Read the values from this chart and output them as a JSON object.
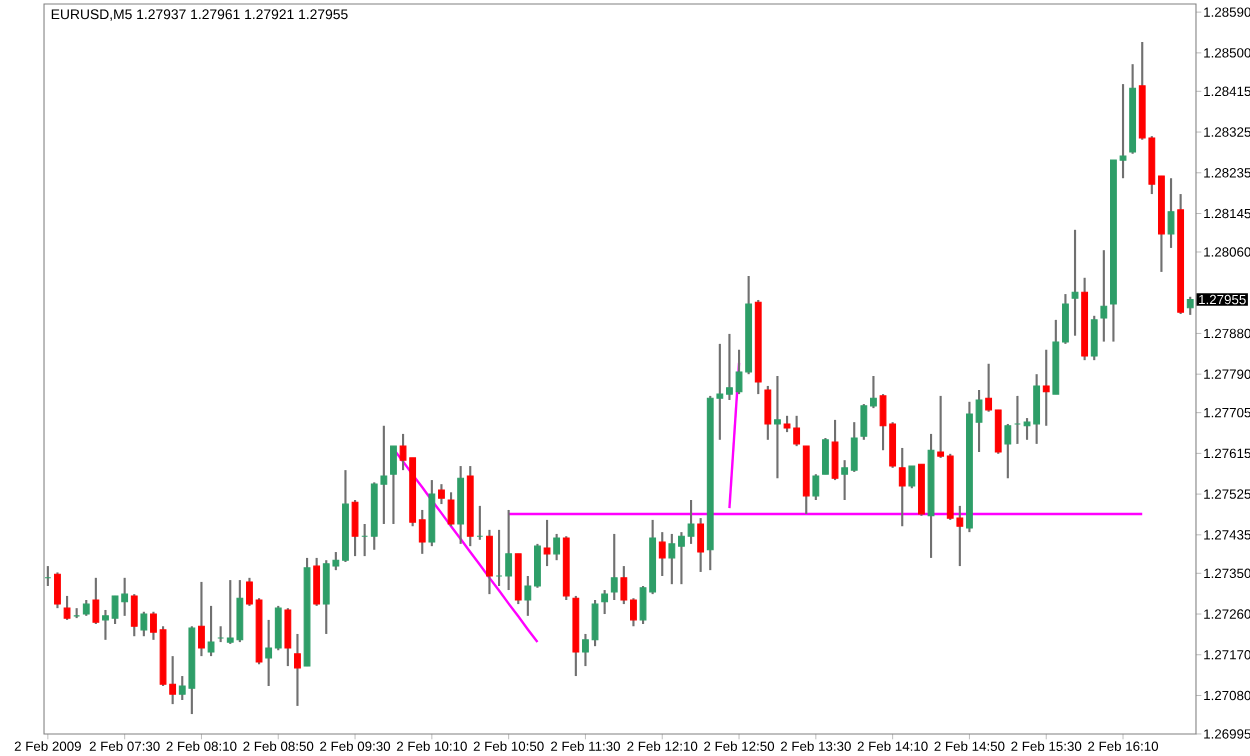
{
  "chart_data": {
    "type": "candlestick",
    "title": "EURUSD,M5  1.27937 1.27961 1.27921 1.27955",
    "colors": [
      "#2e9e68",
      "#ff0000",
      "#ff0000",
      "#2e9e68",
      "#2e9e68",
      "#ff0000",
      "#2e9e68",
      "#2e9e68",
      "#2e9e68",
      "#ff0000",
      "#2e9e68",
      "#ff0000",
      "#ff0000",
      "#ff0000",
      "#2e9e68",
      "#2e9e68",
      "#ff0000",
      "#2e9e68",
      "#2e9e68",
      "#2e9e68",
      "#2e9e68",
      "#ff0000",
      "#ff0000",
      "#2e9e68",
      "#2e9e68",
      "#ff0000",
      "#ff0000",
      "#2e9e68",
      "#ff0000",
      "#2e9e68",
      "#2e9e68",
      "#2e9e68",
      "#ff0000",
      "#2e9e68",
      "#2e9e68",
      "#2e9e68",
      "#2e9e68",
      "#ff0000",
      "#ff0000",
      "#ff0000",
      "#2e9e68",
      "#ff0000",
      "#ff0000",
      "#2e9e68",
      "#ff0000",
      "#2e9e68",
      "#ff0000",
      "#2e9e68",
      "#2e9e68",
      "#ff0000",
      "#2e9e68",
      "#2e9e68",
      "#ff0000",
      "#2e9e68",
      "#ff0000",
      "#ff0000",
      "#2e9e68",
      "#2e9e68",
      "#2e9e68",
      "#2e9e68",
      "#ff0000",
      "#ff0000",
      "#2e9e68",
      "#2e9e68",
      "#ff0000",
      "#2e9e68",
      "#2e9e68",
      "#2e9e68",
      "#ff0000",
      "#2e9e68",
      "#2e9e68",
      "#2e9e68",
      "#2e9e68",
      "#2e9e68",
      "#ff0000",
      "#ff0000",
      "#2e9e68",
      "#ff0000",
      "#ff0000",
      "#ff0000",
      "#2e9e68",
      "#2e9e68",
      "#ff0000",
      "#2e9e68",
      "#2e9e68",
      "#2e9e68",
      "#2e9e68",
      "#ff0000",
      "#ff0000",
      "#ff0000",
      "#2e9e68",
      "#ff0000",
      "#2e9e68",
      "#ff0000",
      "#ff0000",
      "#ff0000",
      "#2e9e68",
      "#2e9e68",
      "#ff0000",
      "#ff0000",
      "#2e9e68",
      "#2e9e68",
      "#2e9e68",
      "#2e9e68",
      "#ff0000",
      "#2e9e68",
      "#2e9e68",
      "#2e9e68",
      "#ff0000",
      "#2e9e68",
      "#2e9e68",
      "#2e9e68",
      "#2e9e68",
      "#2e9e68",
      "#ff0000",
      "#ff0000",
      "#ff0000",
      "#2e9e68",
      "#ff0000",
      "#2e9e68"
    ],
    "categories": [
      "2 Feb 2009",
      null,
      null,
      null,
      null,
      null,
      null,
      null,
      "2 Feb 07:30",
      null,
      null,
      null,
      null,
      null,
      null,
      null,
      "2 Feb 08:10",
      null,
      null,
      null,
      null,
      null,
      null,
      null,
      "2 Feb 08:50",
      null,
      null,
      null,
      null,
      null,
      null,
      null,
      "2 Feb 09:30",
      null,
      null,
      null,
      null,
      null,
      null,
      null,
      "2 Feb 10:10",
      null,
      null,
      null,
      null,
      null,
      null,
      null,
      "2 Feb 10:50",
      null,
      null,
      null,
      null,
      null,
      null,
      null,
      "2 Feb 11:30",
      null,
      null,
      null,
      null,
      null,
      null,
      null,
      "2 Feb 12:10",
      null,
      null,
      null,
      null,
      null,
      null,
      null,
      "2 Feb 12:50",
      null,
      null,
      null,
      null,
      null,
      null,
      null,
      "2 Feb 13:30",
      null,
      null,
      null,
      null,
      null,
      null,
      null,
      "2 Feb 14:10",
      null,
      null,
      null,
      null,
      null,
      null,
      null,
      "2 Feb 14:50",
      null,
      null,
      null,
      null,
      null,
      null,
      null,
      "2 Feb 15:30",
      null,
      null,
      null,
      null,
      null,
      null,
      null,
      "2 Feb 16:10",
      null,
      null,
      null,
      null,
      null,
      null,
      null
    ],
    "ohlc": [
      [
        1.2734,
        1.27366,
        1.27322,
        1.2734
      ],
      [
        1.27348,
        1.27352,
        1.27273,
        1.27282
      ],
      [
        1.27273,
        1.273,
        1.27247,
        1.27251
      ],
      [
        1.27256,
        1.27273,
        1.27251,
        1.27256
      ],
      [
        1.2726,
        1.27291,
        1.27256,
        1.27282
      ],
      [
        1.27291,
        1.2734,
        1.27238,
        1.27242
      ],
      [
        1.27247,
        1.27269,
        1.27203,
        1.27256
      ],
      [
        1.27251,
        1.273,
        1.27238,
        1.273
      ],
      [
        1.27287,
        1.2734,
        1.27256,
        1.27304
      ],
      [
        1.273,
        1.27304,
        1.27211,
        1.27233
      ],
      [
        1.27225,
        1.27265,
        1.27211,
        1.2726
      ],
      [
        1.2726,
        1.27265,
        1.27203,
        1.2722
      ],
      [
        1.27225,
        1.27233,
        1.27101,
        1.27105
      ],
      [
        1.27105,
        1.27167,
        1.27061,
        1.27083
      ],
      [
        1.27083,
        1.27123,
        1.2707,
        1.27101
      ],
      [
        1.27096,
        1.27233,
        1.27039,
        1.27229
      ],
      [
        1.27233,
        1.27331,
        1.27167,
        1.27185
      ],
      [
        1.27176,
        1.27278,
        1.27167,
        1.27198
      ],
      [
        1.27207,
        1.27233,
        1.27198,
        1.27207
      ],
      [
        1.27198,
        1.27335,
        1.27194,
        1.27207
      ],
      [
        1.27203,
        1.27335,
        1.27198,
        1.27295
      ],
      [
        1.27331,
        1.2734,
        1.27278,
        1.27282
      ],
      [
        1.27291,
        1.27295,
        1.27149,
        1.27154
      ],
      [
        1.27163,
        1.27247,
        1.27101,
        1.27185
      ],
      [
        1.27185,
        1.27278,
        1.2718,
        1.27273
      ],
      [
        1.27269,
        1.27273,
        1.27145,
        1.27185
      ],
      [
        1.27172,
        1.27216,
        1.27057,
        1.27141
      ],
      [
        1.27145,
        1.27384,
        1.27145,
        1.27362
      ],
      [
        1.27366,
        1.27384,
        1.27278,
        1.27282
      ],
      [
        1.27282,
        1.27379,
        1.27216,
        1.27371
      ],
      [
        1.27366,
        1.27397,
        1.27357,
        1.27379
      ],
      [
        1.27379,
        1.27578,
        1.27375,
        1.27503
      ],
      [
        1.27507,
        1.27512,
        1.27388,
        1.27432
      ],
      [
        1.27432,
        1.27459,
        1.27388,
        1.27432
      ],
      [
        1.27432,
        1.27551,
        1.27402,
        1.27547
      ],
      [
        1.27547,
        1.27676,
        1.27459,
        1.27565
      ],
      [
        1.27569,
        1.27631,
        1.27459,
        1.27631
      ],
      [
        1.27631,
        1.27658,
        1.27578,
        1.276
      ],
      [
        1.27605,
        1.27605,
        1.27454,
        1.27463
      ],
      [
        1.27468,
        1.2749,
        1.27393,
        1.27419
      ],
      [
        1.27419,
        1.27556,
        1.2741,
        1.27525
      ],
      [
        1.27534,
        1.27547,
        1.27503,
        1.27516
      ],
      [
        1.27512,
        1.27529,
        1.27454,
        1.27459
      ],
      [
        1.27459,
        1.27587,
        1.27415,
        1.2756
      ],
      [
        1.27565,
        1.27587,
        1.2741,
        1.27432
      ],
      [
        1.27432,
        1.27499,
        1.27424,
        1.27432
      ],
      [
        1.27432,
        1.27446,
        1.27304,
        1.27344
      ],
      [
        1.27344,
        1.27446,
        1.27322,
        1.27344
      ],
      [
        1.27344,
        1.2749,
        1.27313,
        1.27393
      ],
      [
        1.27393,
        1.27393,
        1.27282,
        1.27291
      ],
      [
        1.27291,
        1.27344,
        1.27256,
        1.27322
      ],
      [
        1.27322,
        1.27415,
        1.27318,
        1.2741
      ],
      [
        1.27406,
        1.27468,
        1.27366,
        1.27393
      ],
      [
        1.27393,
        1.27437,
        1.27379,
        1.27428
      ],
      [
        1.27428,
        1.27432,
        1.27291,
        1.273
      ],
      [
        1.27295,
        1.273,
        1.27123,
        1.27176
      ],
      [
        1.27176,
        1.27216,
        1.27145,
        1.27203
      ],
      [
        1.27203,
        1.27291,
        1.27189,
        1.27282
      ],
      [
        1.27287,
        1.27313,
        1.2726,
        1.27304
      ],
      [
        1.27309,
        1.27437,
        1.27291,
        1.2734
      ],
      [
        1.2734,
        1.27366,
        1.27282,
        1.27291
      ],
      [
        1.27291,
        1.27295,
        1.27233,
        1.27247
      ],
      [
        1.27247,
        1.27322,
        1.27238,
        1.27318
      ],
      [
        1.27309,
        1.27468,
        1.27304,
        1.27428
      ],
      [
        1.27419,
        1.27441,
        1.27344,
        1.27384
      ],
      [
        1.27384,
        1.27437,
        1.27326,
        1.27415
      ],
      [
        1.2741,
        1.27441,
        1.27326,
        1.27432
      ],
      [
        1.27432,
        1.27512,
        1.27415,
        1.27459
      ],
      [
        1.27459,
        1.27472,
        1.27353,
        1.27397
      ],
      [
        1.27402,
        1.27742,
        1.27357,
        1.27737
      ],
      [
        1.27737,
        1.27857,
        1.27645,
        1.27746
      ],
      [
        1.27746,
        1.27879,
        1.27733,
        1.2776
      ],
      [
        1.27751,
        1.27844,
        1.27746,
        1.27795
      ],
      [
        1.27795,
        1.28007,
        1.2779,
        1.27945
      ],
      [
        1.27949,
        1.27954,
        1.27746,
        1.27773
      ],
      [
        1.27755,
        1.27764,
        1.27645,
        1.2768
      ],
      [
        1.2768,
        1.27786,
        1.2756,
        1.27689
      ],
      [
        1.2768,
        1.27698,
        1.27662,
        1.27671
      ],
      [
        1.27671,
        1.27698,
        1.27631,
        1.27636
      ],
      [
        1.27631,
        1.27631,
        1.27481,
        1.27521
      ],
      [
        1.27521,
        1.27569,
        1.27512,
        1.27565
      ],
      [
        1.27569,
        1.27649,
        1.27569,
        1.27645
      ],
      [
        1.2764,
        1.27689,
        1.27556,
        1.2756
      ],
      [
        1.27569,
        1.276,
        1.27512,
        1.27583
      ],
      [
        1.27578,
        1.27684,
        1.27574,
        1.27649
      ],
      [
        1.27653,
        1.27724,
        1.27645,
        1.2772
      ],
      [
        1.2772,
        1.27786,
        1.27715,
        1.27737
      ],
      [
        1.27742,
        1.27746,
        1.27622,
        1.27676
      ],
      [
        1.2768,
        1.27684,
        1.27583,
        1.27587
      ],
      [
        1.27583,
        1.27627,
        1.27454,
        1.27543
      ],
      [
        1.27543,
        1.27587,
        1.27538,
        1.27587
      ],
      [
        1.27591,
        1.27591,
        1.27477,
        1.27481
      ],
      [
        1.27477,
        1.27658,
        1.27384,
        1.27622
      ],
      [
        1.27618,
        1.27742,
        1.27605,
        1.27609
      ],
      [
        1.27609,
        1.27614,
        1.27468,
        1.27472
      ],
      [
        1.27472,
        1.27499,
        1.27366,
        1.27454
      ],
      [
        1.2745,
        1.27729,
        1.27441,
        1.27702
      ],
      [
        1.27684,
        1.27755,
        1.27618,
        1.27733
      ],
      [
        1.27737,
        1.27813,
        1.27707,
        1.27711
      ],
      [
        1.27711,
        1.27711,
        1.27614,
        1.27618
      ],
      [
        1.27636,
        1.2768,
        1.2756,
        1.27676
      ],
      [
        1.2768,
        1.27742,
        1.27636,
        1.2768
      ],
      [
        1.27676,
        1.27693,
        1.27645,
        1.27684
      ],
      [
        1.2768,
        1.2779,
        1.27636,
        1.27764
      ],
      [
        1.27764,
        1.27844,
        1.27676,
        1.27751
      ],
      [
        1.27746,
        1.2791,
        1.27746,
        1.27861
      ],
      [
        1.27861,
        1.27967,
        1.27857,
        1.27945
      ],
      [
        1.27958,
        1.28109,
        1.27875,
        1.27971
      ],
      [
        1.27971,
        1.28003,
        1.27821,
        1.2783
      ],
      [
        1.2783,
        1.27919,
        1.27821,
        1.2791
      ],
      [
        1.27914,
        1.28064,
        1.27862,
        1.2794
      ],
      [
        1.27945,
        1.28263,
        1.27862,
        1.28263
      ],
      [
        1.28263,
        1.28431,
        1.28223,
        1.28272
      ],
      [
        1.28281,
        1.28475,
        1.28277,
        1.28422
      ],
      [
        1.28427,
        1.28524,
        1.28308,
        1.28312
      ],
      [
        1.28312,
        1.28316,
        1.28188,
        1.2821
      ],
      [
        1.28228,
        1.28228,
        1.28016,
        1.281
      ],
      [
        1.281,
        1.28223,
        1.28069,
        1.28149
      ],
      [
        1.28153,
        1.28188,
        1.27923,
        1.27927
      ],
      [
        1.27937,
        1.27961,
        1.27921,
        1.27955
      ]
    ],
    "series": [
      {
        "type": "line",
        "color": "#ff00ff",
        "values": [
          null,
          null,
          null,
          null,
          null,
          null,
          null,
          null,
          null,
          null,
          null,
          null,
          null,
          null,
          null,
          null,
          null,
          null,
          null,
          null,
          null,
          null,
          null,
          null,
          null,
          null,
          null,
          null,
          null,
          null,
          null,
          null,
          null,
          null,
          null,
          null,
          1.27625,
          1.27597,
          1.27568,
          1.2754,
          1.27511,
          1.27483,
          1.27454,
          1.27426,
          1.27397,
          1.27369,
          1.2734,
          1.27312,
          1.27283,
          1.27255,
          1.27226,
          1.27198,
          null,
          null,
          null,
          null,
          null,
          null,
          null,
          null,
          null,
          null,
          null,
          null,
          null,
          null,
          null,
          null,
          null,
          null,
          null,
          null,
          null,
          null,
          null,
          null,
          null,
          null,
          null,
          null,
          null,
          null,
          null,
          null,
          null,
          null,
          null,
          null,
          null,
          null,
          null,
          null,
          null,
          null,
          null,
          null,
          null,
          null,
          null,
          null,
          null,
          null,
          null,
          null,
          null,
          null,
          null,
          null,
          null,
          null,
          null,
          null,
          null,
          null,
          null,
          null,
          null,
          null,
          null,
          null
        ]
      },
      {
        "type": "line",
        "color": "#ff00ff",
        "values": [
          null,
          null,
          null,
          null,
          null,
          null,
          null,
          null,
          null,
          null,
          null,
          null,
          null,
          null,
          null,
          null,
          null,
          null,
          null,
          null,
          null,
          null,
          null,
          null,
          null,
          null,
          null,
          null,
          null,
          null,
          null,
          null,
          null,
          null,
          null,
          null,
          null,
          null,
          null,
          null,
          null,
          null,
          null,
          null,
          null,
          null,
          null,
          null,
          null,
          null,
          null,
          null,
          null,
          null,
          null,
          null,
          null,
          null,
          null,
          null,
          null,
          null,
          null,
          null,
          null,
          null,
          null,
          null,
          null,
          null,
          null,
          1.27494,
          1.27815,
          null,
          null,
          null,
          null,
          null,
          null,
          null,
          null,
          null,
          null,
          null,
          null,
          null,
          null,
          null,
          null,
          null,
          null,
          null,
          null,
          null,
          null,
          null,
          null,
          null,
          null,
          null,
          null,
          null,
          null,
          null,
          null,
          null,
          null,
          null,
          null,
          null,
          null,
          null,
          null,
          null,
          null,
          null,
          null,
          null,
          null,
          null
        ]
      },
      {
        "type": "line",
        "color": "#ff00ff",
        "values": [
          null,
          null,
          null,
          null,
          null,
          null,
          null,
          null,
          null,
          null,
          null,
          null,
          null,
          null,
          null,
          null,
          null,
          null,
          null,
          null,
          null,
          null,
          null,
          null,
          null,
          null,
          null,
          null,
          null,
          null,
          null,
          null,
          null,
          null,
          null,
          null,
          null,
          null,
          null,
          null,
          null,
          null,
          null,
          null,
          null,
          null,
          null,
          null,
          1.27481,
          1.27481,
          1.27481,
          1.27481,
          1.27481,
          1.27481,
          1.27481,
          1.27481,
          1.27481,
          1.27481,
          1.27481,
          1.27481,
          1.27481,
          1.27481,
          1.27481,
          1.27481,
          1.27481,
          1.27481,
          1.27481,
          1.27481,
          1.27481,
          1.27481,
          1.27481,
          1.27481,
          1.27481,
          1.27481,
          1.27481,
          1.27481,
          1.27481,
          1.27481,
          1.27481,
          1.27481,
          1.27481,
          1.27481,
          1.27481,
          1.27481,
          1.27481,
          1.27481,
          1.27481,
          1.27481,
          1.27481,
          1.27481,
          1.27481,
          1.27481,
          1.27481,
          1.27481,
          1.27481,
          1.27481,
          1.27481,
          1.27481,
          1.27481,
          1.27481,
          1.27481,
          1.27481,
          1.27481,
          1.27481,
          1.27481,
          1.27481,
          1.27481,
          1.27481,
          1.27481,
          1.27481,
          1.27481,
          1.27481,
          1.27481,
          1.27481,
          1.27481,
          null,
          null,
          null,
          null,
          null
        ]
      }
    ],
    "ylim": [
      1.26995,
      1.28608
    ],
    "yticks": [
      {
        "value": 1.2859,
        "label": "1.28590"
      },
      {
        "value": 1.285,
        "label": "1.28500"
      },
      {
        "value": 1.28415,
        "label": "1.28415"
      },
      {
        "value": 1.28325,
        "label": "1.28325"
      },
      {
        "value": 1.28235,
        "label": "1.28235"
      },
      {
        "value": 1.28145,
        "label": "1.28145"
      },
      {
        "value": 1.2806,
        "label": "1.28060"
      },
      {
        "value": 1.2788,
        "label": "1.27880"
      },
      {
        "value": 1.2779,
        "label": "1.27790"
      },
      {
        "value": 1.27705,
        "label": "1.27705"
      },
      {
        "value": 1.27615,
        "label": "1.27615"
      },
      {
        "value": 1.27525,
        "label": "1.27525"
      },
      {
        "value": 1.27435,
        "label": "1.27435"
      },
      {
        "value": 1.2735,
        "label": "1.27350"
      },
      {
        "value": 1.2726,
        "label": "1.27260"
      },
      {
        "value": 1.2717,
        "label": "1.27170"
      },
      {
        "value": 1.2708,
        "label": "1.27080"
      },
      {
        "value": 1.26995,
        "label": "1.26995"
      }
    ],
    "annotations": [
      "1.27955"
    ]
  }
}
